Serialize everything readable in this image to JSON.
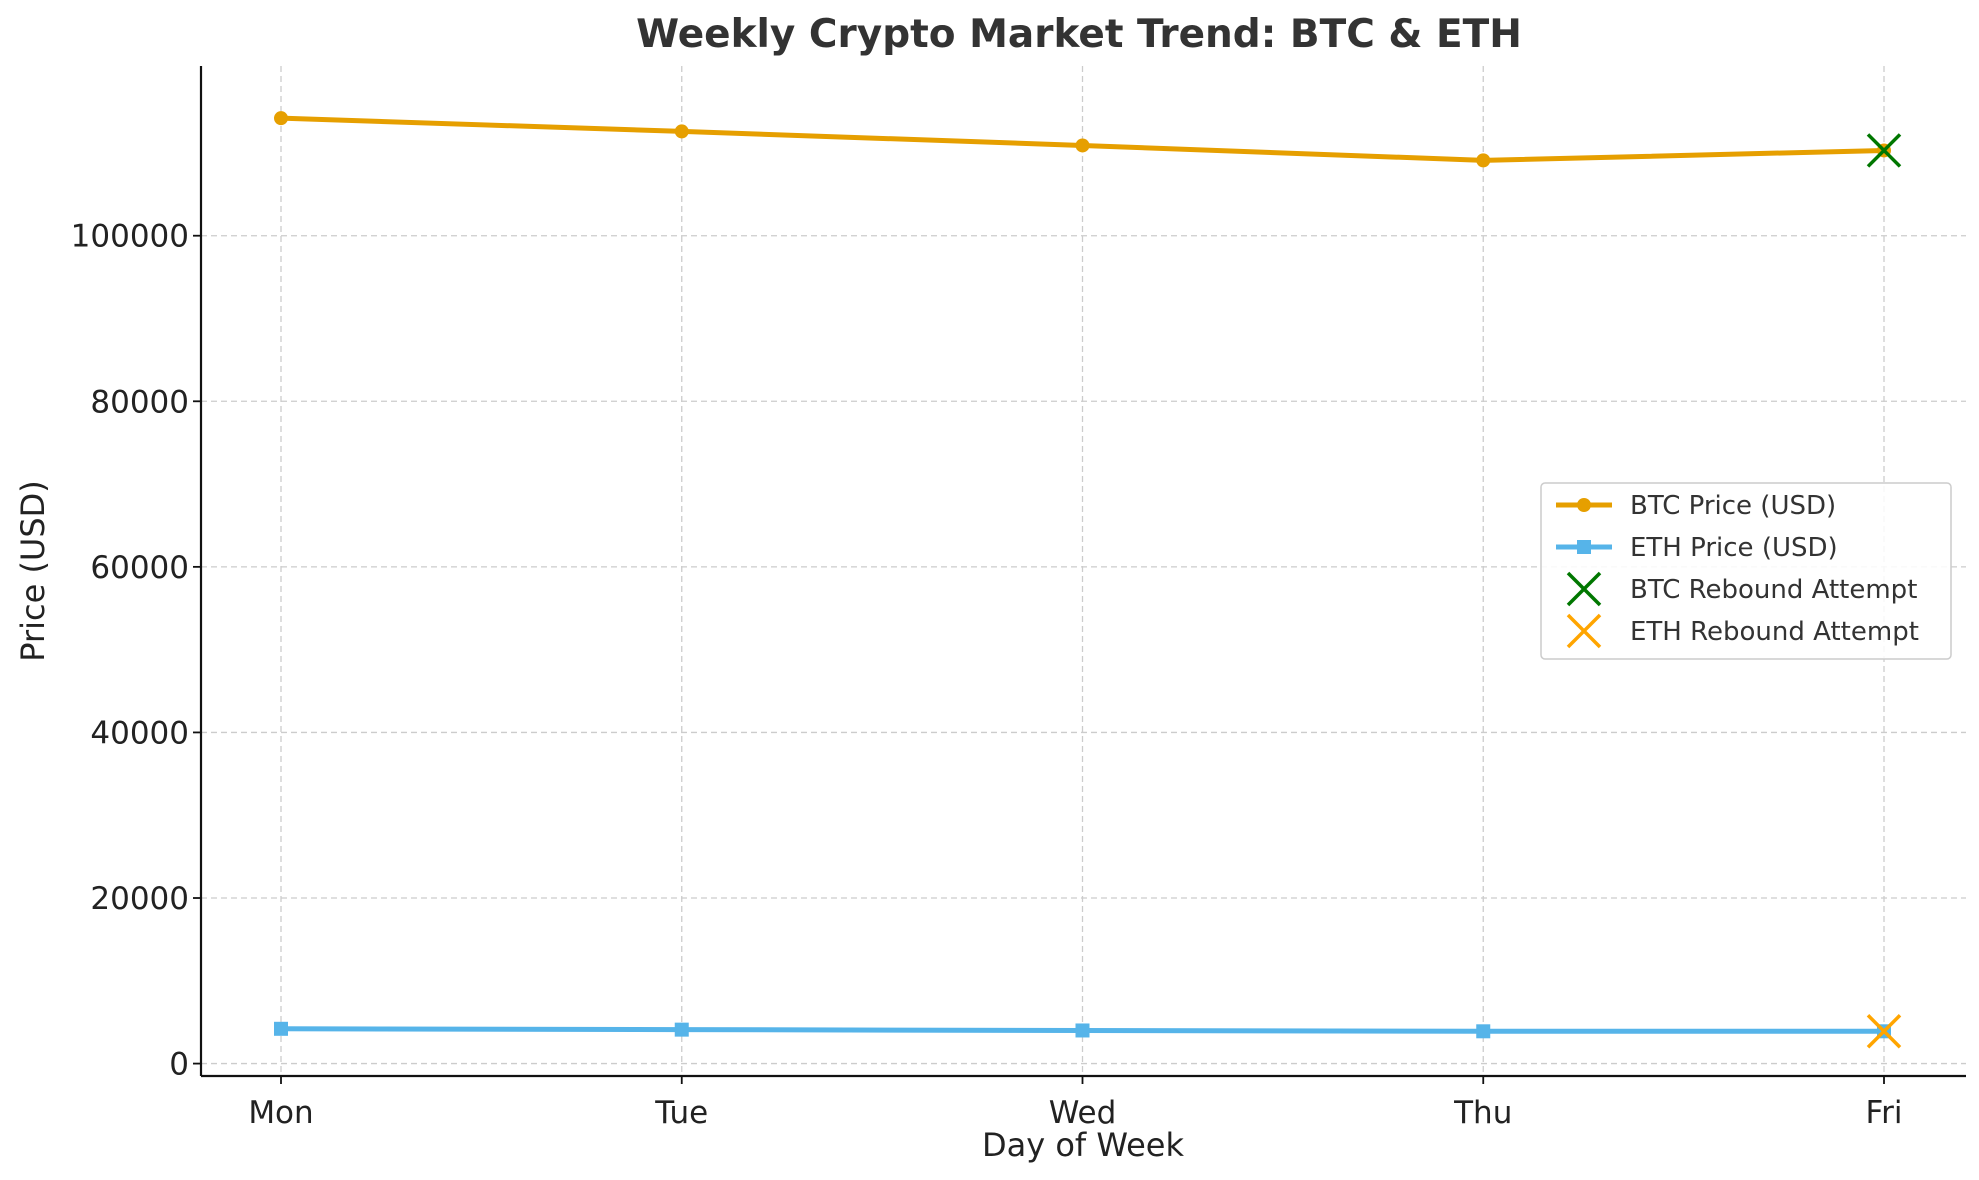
{
  "chart_data": {
    "type": "line",
    "title": "Weekly Crypto Market Trend: BTC & ETH",
    "xlabel": "Day of Week",
    "ylabel": "Price (USD)",
    "categories": [
      "Mon",
      "Tue",
      "Wed",
      "Thu",
      "Fri"
    ],
    "ylim": [
      -1500,
      120500
    ],
    "yticks": [
      0,
      20000,
      40000,
      60000,
      80000,
      100000
    ],
    "ytick_labels": [
      "0",
      "20000",
      "40000",
      "60000",
      "80000",
      "100000"
    ],
    "grid": true,
    "legend_position": "center-right",
    "series": [
      {
        "name": "BTC Price (USD)",
        "values": [
          114200,
          112600,
          110900,
          109100,
          110300
        ],
        "color": "#E69F00",
        "marker": "circle"
      },
      {
        "name": "ETH Price (USD)",
        "values": [
          4200,
          4100,
          4000,
          3900,
          3900
        ],
        "color": "#56B4E9",
        "marker": "square"
      }
    ],
    "annotations": [
      {
        "name": "BTC Rebound Attempt",
        "x": "Fri",
        "y": 110300,
        "color": "#007700",
        "marker": "x"
      },
      {
        "name": "ETH Rebound Attempt",
        "x": "Fri",
        "y": 3900,
        "color": "#FFA500",
        "marker": "x"
      }
    ]
  }
}
